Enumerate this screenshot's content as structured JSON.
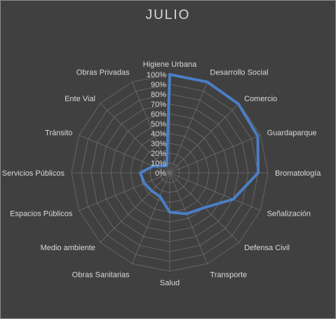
{
  "chart_data": {
    "type": "radar",
    "title": "JULIO",
    "categories": [
      "Higiene Urbana",
      "Desarrollo Social",
      "Comercio",
      "Guardaparque",
      "Bromatología",
      "Señalización",
      "Defensa Civil",
      "Transporte",
      "Salud",
      "Obras Sanitarias",
      "Medio ambiente",
      "Espacios Públicos",
      "Servicios Públicos",
      "Tránsito",
      "Ente Vial",
      "Obras Privadas"
    ],
    "series": [
      {
        "values": [
          100,
          100,
          99,
          97,
          90,
          70,
          50,
          45,
          40,
          26,
          26,
          28,
          30,
          18,
          10,
          8
        ],
        "color": "#4a7ec5"
      }
    ],
    "rlim": [
      0,
      100
    ],
    "r_ticks": [
      "0%",
      "10%",
      "20%",
      "30%",
      "40%",
      "50%",
      "60%",
      "70%",
      "80%",
      "90%",
      "100%"
    ],
    "grid": true,
    "legend": "none"
  }
}
